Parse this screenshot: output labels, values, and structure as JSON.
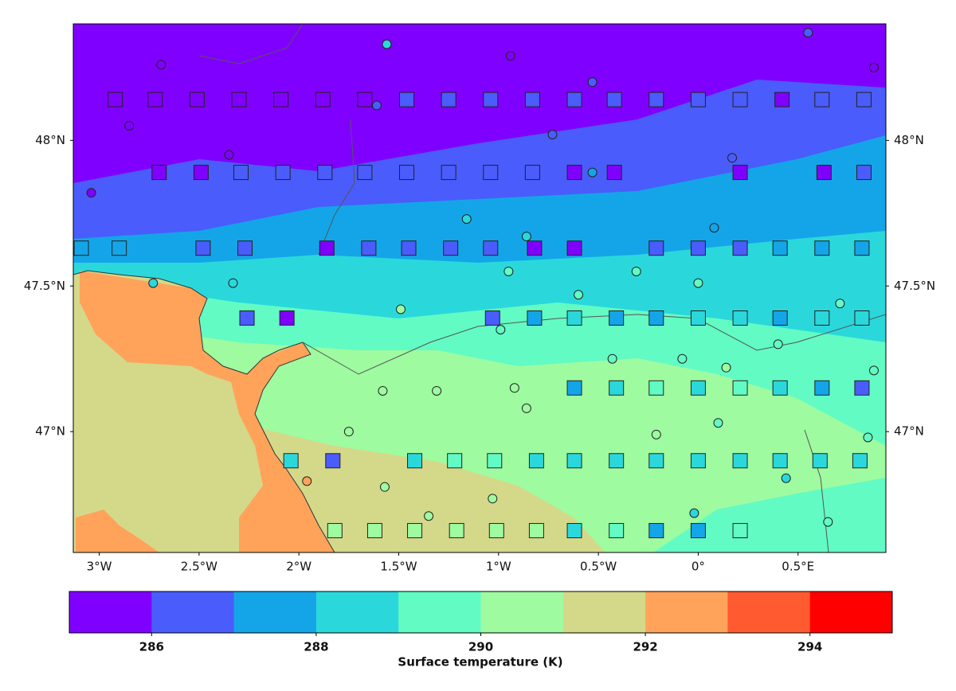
{
  "chart_data": {
    "type": "map",
    "xlim": [
      -3.13,
      0.94
    ],
    "ylim": [
      46.585,
      48.4
    ],
    "xticks": [
      {
        "value": -3,
        "label": "3°W"
      },
      {
        "value": -2.5,
        "label": "2.5°W"
      },
      {
        "value": -2,
        "label": "2°W"
      },
      {
        "value": -1.5,
        "label": "1.5°W"
      },
      {
        "value": -1,
        "label": "1°W"
      },
      {
        "value": -0.5,
        "label": "0.5°W"
      },
      {
        "value": 0,
        "label": "0°"
      },
      {
        "value": 0.5,
        "label": "0.5°E"
      }
    ],
    "yticks": [
      {
        "value": 47,
        "label": "47°N"
      },
      {
        "value": 47.5,
        "label": "47.5°N"
      },
      {
        "value": 48,
        "label": "48°N"
      }
    ],
    "colorbar": {
      "label": "Surface temperature (K)",
      "lim": [
        285,
        295
      ],
      "ticks": [
        286,
        288,
        290,
        292,
        294
      ],
      "colors": [
        "#8000ff",
        "#4a5cfb",
        "#14a5e8",
        "#2ad8dc",
        "#62fbc4",
        "#9efba0",
        "#d4d98a",
        "#ffa35b",
        "#ff5a30",
        "#ff0000"
      ]
    },
    "squares": {
      "lon": [
        -2.92,
        -2.72,
        -2.51,
        -2.3,
        -2.09,
        -1.88,
        -1.67,
        -1.46,
        -1.25,
        -1.04,
        -0.83,
        -0.62,
        -0.42,
        -0.21,
        0,
        0.21,
        0.42,
        0.62,
        0.83,
        -2.7,
        -2.49,
        -2.29,
        -2.08,
        -1.87,
        -1.67,
        -1.46,
        -1.25,
        -1.04,
        -0.83,
        -0.62,
        -0.42,
        0.21,
        0.63,
        0.83,
        -3.09,
        -2.9,
        -2.48,
        -2.27,
        -1.86,
        -1.65,
        -1.45,
        -1.24,
        -1.04,
        -0.82,
        -0.62,
        -0.21,
        0,
        0.21,
        0.41,
        0.62,
        0.82,
        -2.26,
        -2.06,
        -1.03,
        -0.82,
        -0.62,
        -0.41,
        -0.21,
        0,
        0.21,
        0.41,
        0.62,
        0.82,
        -0.62,
        -0.41,
        -0.21,
        0,
        0.21,
        0.41,
        0.62,
        0.82,
        -2.04,
        -1.83,
        -1.42,
        -1.22,
        -1.02,
        -0.81,
        -0.62,
        -0.41,
        -0.21,
        0,
        0.21,
        0.41,
        0.61,
        0.81,
        -1.82,
        -1.62,
        -1.42,
        -1.21,
        -1.01,
        -0.81,
        -0.62,
        -0.41,
        -0.21,
        0,
        0.21
      ],
      "lat": [
        48.14,
        48.14,
        48.14,
        48.14,
        48.14,
        48.14,
        48.14,
        48.14,
        48.14,
        48.14,
        48.14,
        48.14,
        48.14,
        48.14,
        48.14,
        48.14,
        48.14,
        48.14,
        48.14,
        47.89,
        47.89,
        47.89,
        47.89,
        47.89,
        47.89,
        47.89,
        47.89,
        47.89,
        47.89,
        47.89,
        47.89,
        47.89,
        47.89,
        47.89,
        47.63,
        47.63,
        47.63,
        47.63,
        47.63,
        47.63,
        47.63,
        47.63,
        47.63,
        47.63,
        47.63,
        47.63,
        47.63,
        47.63,
        47.63,
        47.63,
        47.63,
        47.39,
        47.39,
        47.39,
        47.39,
        47.39,
        47.39,
        47.39,
        47.39,
        47.39,
        47.39,
        47.39,
        47.39,
        47.15,
        47.15,
        47.15,
        47.15,
        47.15,
        47.15,
        47.15,
        47.15,
        46.9,
        46.9,
        46.9,
        46.9,
        46.9,
        46.9,
        46.9,
        46.9,
        46.9,
        46.9,
        46.9,
        46.9,
        46.9,
        46.9,
        46.66,
        46.66,
        46.66,
        46.66,
        46.66,
        46.66,
        46.66,
        46.66,
        46.66,
        46.66,
        46.66
      ],
      "values": [
        285.5,
        285.5,
        285.5,
        285.5,
        285.5,
        285.5,
        285.5,
        286.5,
        286.5,
        286.5,
        286.5,
        286.5,
        286.5,
        286.5,
        286.5,
        286.5,
        285.5,
        286.5,
        286.5,
        285.5,
        285.5,
        286.5,
        286.5,
        286.5,
        286.5,
        286.5,
        286.5,
        286.5,
        286.5,
        285.5,
        285.5,
        285.5,
        285.5,
        286.5,
        287.5,
        287.5,
        286.5,
        286.5,
        285.5,
        286.5,
        286.5,
        286.5,
        286.5,
        285.5,
        285.5,
        286.5,
        286.5,
        286.5,
        287.5,
        287.5,
        287.5,
        286.5,
        285.5,
        286.5,
        287.5,
        288.5,
        287.5,
        287.5,
        288.5,
        288.5,
        287.5,
        288.5,
        288.5,
        287.5,
        288.5,
        289.5,
        288.5,
        289.5,
        288.5,
        287.5,
        286.5,
        288.5,
        286.5,
        288.5,
        289.5,
        289.5,
        288.5,
        288.5,
        288.5,
        288.5,
        288.5,
        288.5,
        288.5,
        288.5,
        288.5,
        290.5,
        290.5,
        290.5,
        290.5,
        290.5,
        290.5,
        288.5,
        289.5,
        287.5,
        287.5,
        289.5
      ]
    },
    "circles": {
      "lon": [
        -2.69,
        -1.56,
        -0.94,
        -0.53,
        0.55,
        -2.85,
        -1.61,
        -0.73,
        -2.35,
        -0.53,
        0.17,
        -3.04,
        -1.16,
        -0.86,
        0.08,
        -2.73,
        -2.33,
        -0.95,
        -0.31,
        0,
        -1.49,
        -0.6,
        0.71,
        -0.99,
        -0.43,
        -0.08,
        0.14,
        -1.58,
        -1.31,
        -0.92,
        -0.86,
        -1.75,
        -0.21,
        0.1,
        0.85,
        -1.96,
        -1.57,
        -1.03,
        -1.35,
        -0.02,
        0.65,
        0.44,
        0.88,
        0.88,
        0.4
      ],
      "lat": [
        48.26,
        48.33,
        48.29,
        48.2,
        48.37,
        48.05,
        48.12,
        48.02,
        47.95,
        47.89,
        47.94,
        47.82,
        47.73,
        47.67,
        47.7,
        47.51,
        47.51,
        47.55,
        47.55,
        47.51,
        47.42,
        47.47,
        47.44,
        47.35,
        47.25,
        47.25,
        47.22,
        47.14,
        47.14,
        47.15,
        47.08,
        47,
        46.99,
        47.03,
        46.98,
        46.83,
        46.81,
        46.77,
        46.71,
        46.72,
        46.69,
        46.84,
        47.21,
        48.25,
        47.3
      ],
      "values": [
        285.5,
        288.5,
        285.5,
        286.5,
        286.5,
        285.5,
        286.5,
        286.5,
        285.5,
        287.5,
        286.5,
        285.5,
        288.5,
        288.5,
        287.5,
        288.5,
        288.5,
        289.5,
        289.5,
        289.5,
        290.5,
        289.5,
        289.5,
        289.5,
        289.5,
        289.5,
        290.5,
        290.5,
        290.5,
        290.5,
        290.5,
        290.5,
        290.5,
        289.5,
        289.5,
        292.5,
        290.5,
        290.5,
        290.5,
        288.5,
        289.5,
        288.5,
        289.5,
        285.5,
        289.5
      ]
    }
  }
}
